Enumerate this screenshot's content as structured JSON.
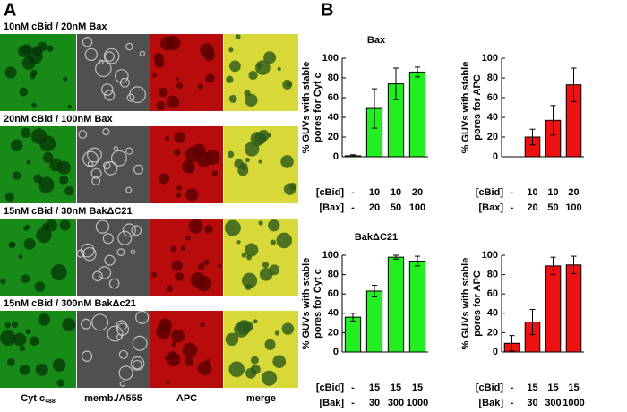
{
  "panel_a": {
    "label": "A",
    "rows": [
      "10nM cBid / 20nM Bax",
      "20nM cBid / 100nM Bax",
      "15nM cBid / 30nM BakΔC21",
      "15nM cBid / 300nM BakΔc21"
    ],
    "columns": [
      {
        "text": "Cyt c",
        "sub": "488"
      },
      {
        "text": "memb./A555"
      },
      {
        "text": "APC"
      },
      {
        "text": "merge"
      }
    ]
  },
  "panel_b_label": "B",
  "chart_data": [
    {
      "type": "bar",
      "title": "Bax",
      "ylabel": [
        "% GUVs with stable",
        "pores for Cyt c"
      ],
      "color": "#22ee22",
      "category_row_names": [
        "[cBid]",
        "[Bax]"
      ],
      "categories": [
        [
          "-",
          "-"
        ],
        [
          "10",
          "20"
        ],
        [
          "10",
          "50"
        ],
        [
          "20",
          "100"
        ]
      ],
      "values": [
        1,
        49,
        74,
        86
      ],
      "errors": [
        1,
        20,
        16,
        5
      ],
      "ylim": [
        0,
        100
      ],
      "yticks": [
        0,
        20,
        40,
        60,
        80,
        100
      ]
    },
    {
      "type": "bar",
      "ylabel": [
        "% GUVs with stable",
        "pores for APC"
      ],
      "color": "#ee1111",
      "category_row_names": [
        "[cBid]",
        "[Bax]"
      ],
      "categories": [
        [
          "-",
          "-"
        ],
        [
          "10",
          "20"
        ],
        [
          "10",
          "50"
        ],
        [
          "20",
          "100"
        ]
      ],
      "values": [
        0,
        20,
        37,
        73
      ],
      "errors": [
        0,
        8,
        15,
        17
      ],
      "ylim": [
        0,
        100
      ],
      "yticks": [
        0,
        20,
        40,
        60,
        80,
        100
      ]
    },
    {
      "type": "bar",
      "title": "BakΔC21",
      "ylabel": [
        "% GUVs with stable",
        "pores for Cyt c"
      ],
      "color": "#22ee22",
      "category_row_names": [
        "[cBid]",
        "[Bak]"
      ],
      "categories": [
        [
          "-",
          "-"
        ],
        [
          "15",
          "30"
        ],
        [
          "15",
          "300"
        ],
        [
          "15",
          "1000"
        ]
      ],
      "values": [
        36,
        63,
        98,
        94
      ],
      "errors": [
        4,
        6,
        2,
        5
      ],
      "ylim": [
        0,
        100
      ],
      "yticks": [
        0,
        20,
        40,
        60,
        80,
        100
      ]
    },
    {
      "type": "bar",
      "ylabel": [
        "% GUVs with stable",
        "pores for APC"
      ],
      "color": "#ee1111",
      "category_row_names": [
        "[cBid]",
        "[Bak]"
      ],
      "categories": [
        [
          "-",
          "-"
        ],
        [
          "15",
          "30"
        ],
        [
          "15",
          "300"
        ],
        [
          "15",
          "1000"
        ]
      ],
      "values": [
        9,
        31,
        89,
        90
      ],
      "errors": [
        8,
        13,
        9,
        9
      ],
      "ylim": [
        0,
        100
      ],
      "yticks": [
        0,
        20,
        40,
        60,
        80,
        100
      ]
    }
  ]
}
